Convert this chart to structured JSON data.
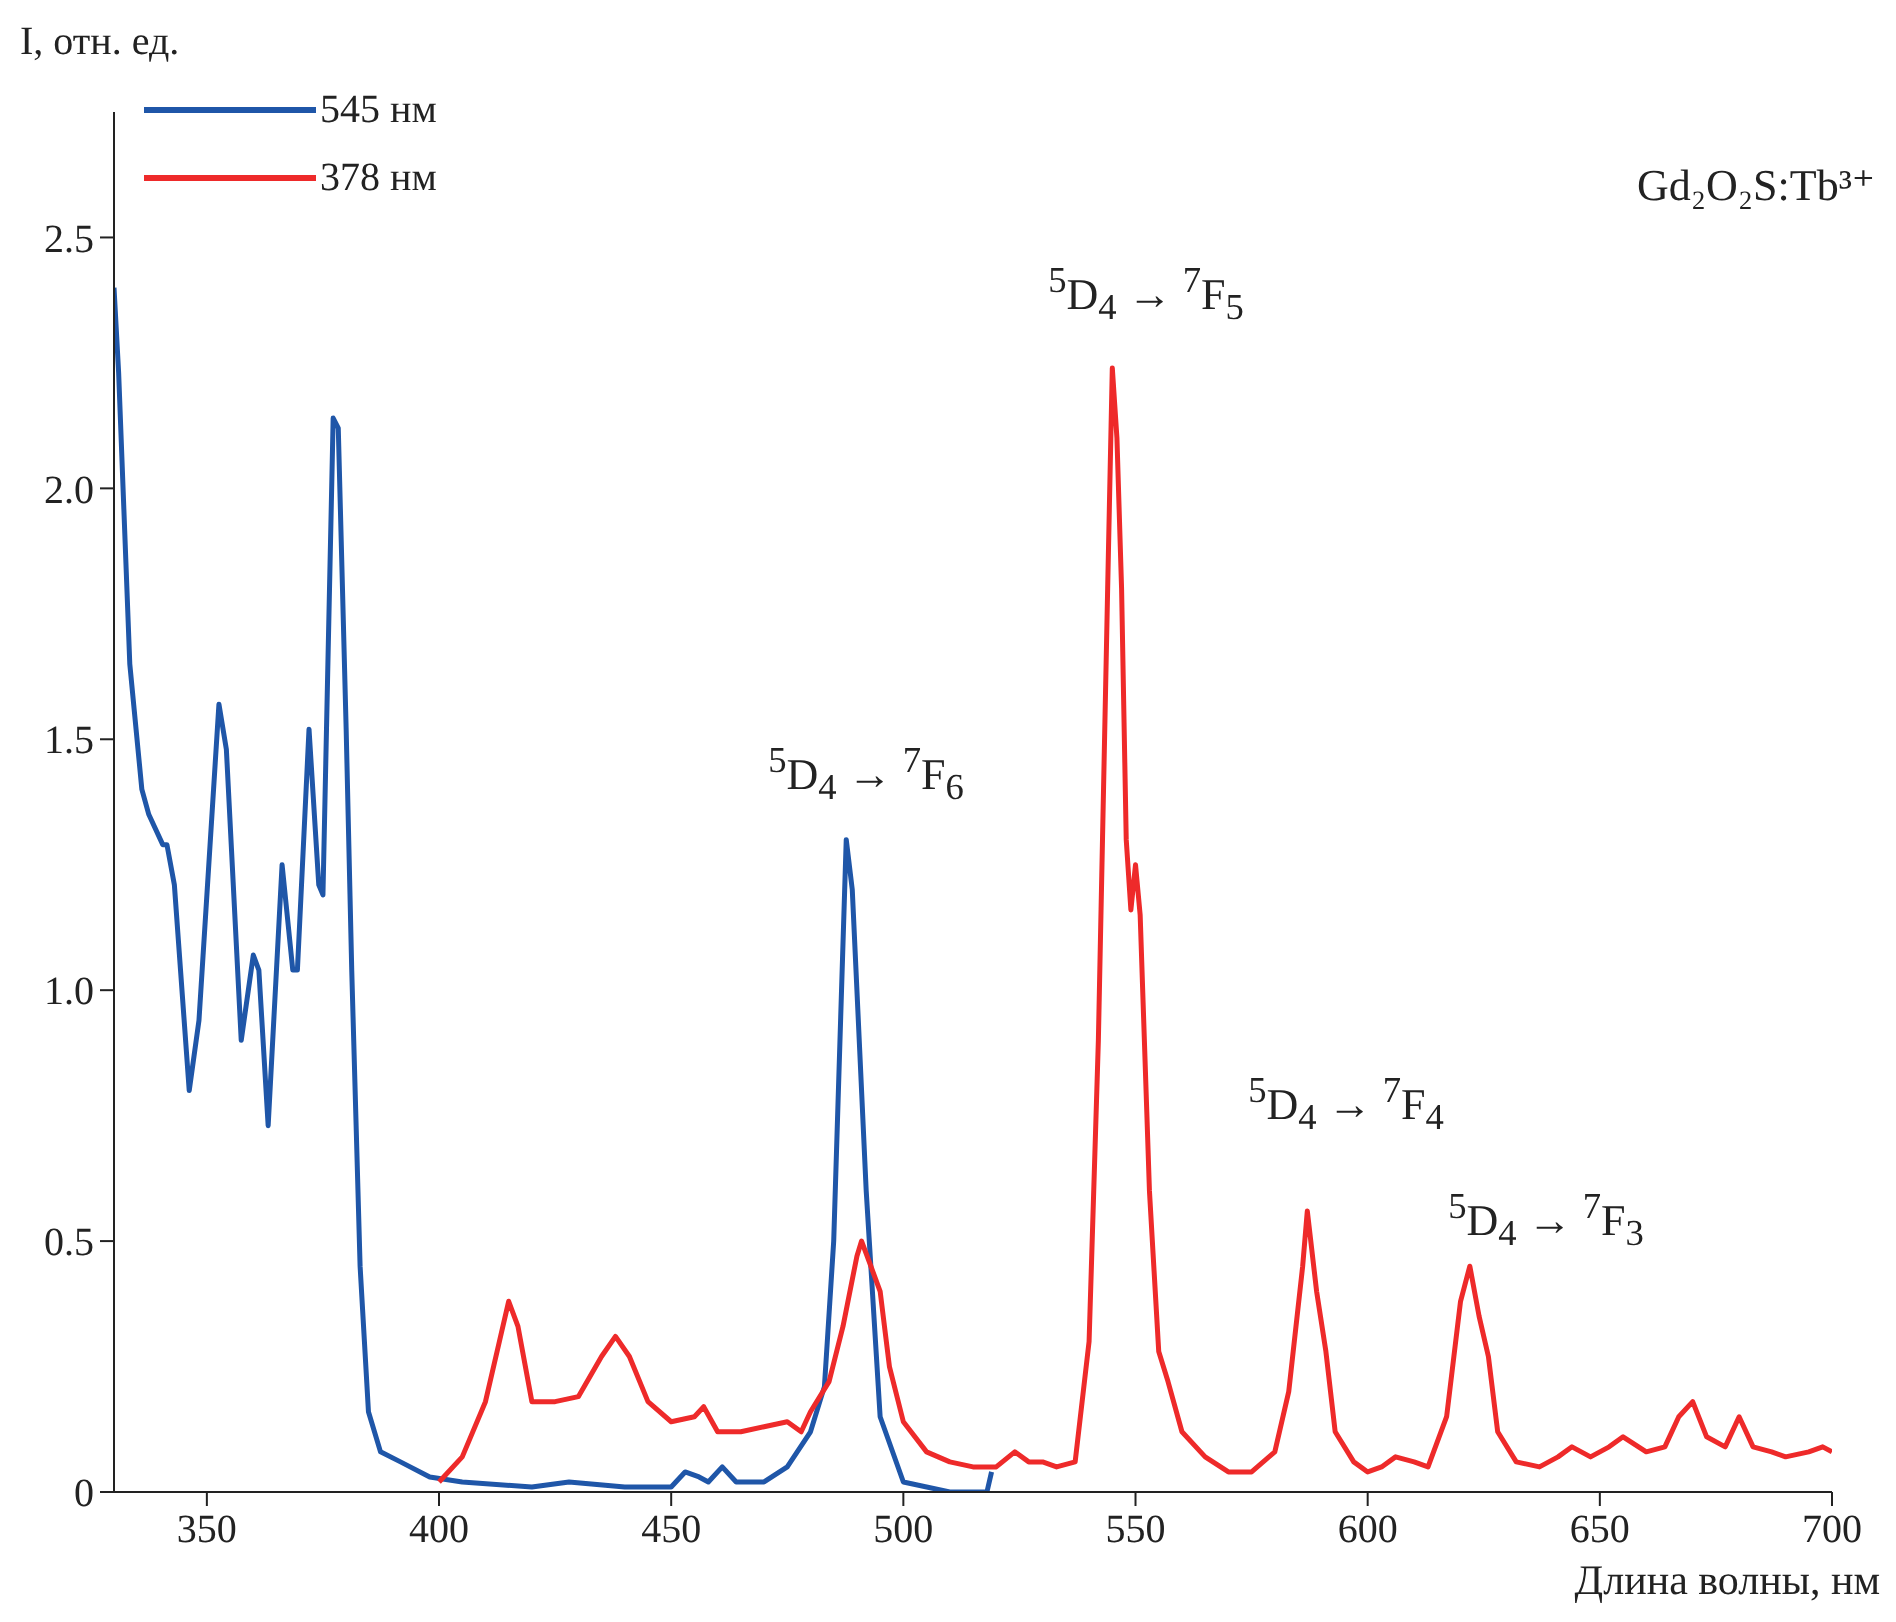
{
  "chart_data": {
    "type": "line",
    "xlabel": "Длина волны, нм",
    "ylabel": "I, отн. ед.",
    "xlim": [
      330,
      700
    ],
    "xticks": [
      350,
      400,
      450,
      500,
      550,
      600,
      650,
      700
    ],
    "ylim": [
      0,
      2.75
    ],
    "yticks": [
      0,
      0.5,
      {
        "value": 1,
        "label": "1.0"
      },
      1.5,
      {
        "value": 2,
        "label": "2.0"
      },
      2.5
    ],
    "grid": false,
    "legend": "top left",
    "marker": "none",
    "line_style": "solid",
    "series": [
      {
        "name": "545 нм",
        "color": "#1f56a8",
        "x": [
          330,
          331,
          333.4,
          336,
          337.5,
          340.5,
          341.4,
          343,
          346.2,
          348.3,
          352.6,
          354.2,
          357.4,
          360,
          361.2,
          363.2,
          366.2,
          368.5,
          369.5,
          372,
          374.1,
          375,
          377.2,
          378.3,
          380,
          381.2,
          383,
          384.8,
          387.4,
          391.7,
          398,
          405,
          420,
          428,
          440,
          450,
          453,
          456,
          458,
          461,
          464,
          470,
          475,
          480,
          483,
          485,
          487.7,
          489,
          492,
          495,
          500,
          510,
          518,
          519
        ],
        "values": [
          2.4,
          2.23,
          1.65,
          1.4,
          1.35,
          1.29,
          1.29,
          1.21,
          0.8,
          0.94,
          1.57,
          1.48,
          0.9,
          1.07,
          1.04,
          0.73,
          1.25,
          1.04,
          1.04,
          1.52,
          1.21,
          1.19,
          2.14,
          2.12,
          1.52,
          1.04,
          0.45,
          0.16,
          0.08,
          0.06,
          0.03,
          0.02,
          0.01,
          0.02,
          0.01,
          0.01,
          0.04,
          0.03,
          0.02,
          0.05,
          0.02,
          0.02,
          0.05,
          0.12,
          0.21,
          0.5,
          1.3,
          1.2,
          0.6,
          0.15,
          0.02,
          0.0,
          0.0,
          0.04
        ]
      },
      {
        "name": "378 нм",
        "color": "#ee2a2a",
        "x": [
          400,
          405,
          410,
          413,
          415,
          417,
          420,
          425,
          430,
          435,
          438,
          441,
          445,
          450,
          455,
          457,
          460,
          465,
          470,
          475,
          478,
          480,
          484,
          487,
          490,
          491,
          493,
          495,
          497,
          500,
          505,
          510,
          515,
          520,
          524,
          527,
          530,
          533,
          537,
          540,
          542,
          544,
          545,
          546,
          547,
          548,
          549,
          550,
          551,
          553,
          555,
          557,
          560,
          565,
          570,
          575,
          580,
          583,
          586,
          587,
          589,
          591,
          593,
          597,
          600,
          603,
          606,
          610,
          613,
          617,
          620,
          622,
          624,
          626,
          628,
          632,
          637,
          641,
          644,
          648,
          652,
          655,
          660,
          664,
          667,
          670,
          673,
          677,
          680,
          683,
          687,
          690,
          695,
          698,
          700
        ],
        "values": [
          0.02,
          0.07,
          0.18,
          0.3,
          0.38,
          0.33,
          0.18,
          0.18,
          0.19,
          0.27,
          0.31,
          0.27,
          0.18,
          0.14,
          0.15,
          0.17,
          0.12,
          0.12,
          0.13,
          0.14,
          0.12,
          0.16,
          0.22,
          0.33,
          0.47,
          0.5,
          0.45,
          0.4,
          0.25,
          0.14,
          0.08,
          0.06,
          0.05,
          0.05,
          0.08,
          0.06,
          0.06,
          0.05,
          0.06,
          0.3,
          0.9,
          1.8,
          2.24,
          2.1,
          1.8,
          1.3,
          1.16,
          1.25,
          1.15,
          0.6,
          0.28,
          0.22,
          0.12,
          0.07,
          0.04,
          0.04,
          0.08,
          0.2,
          0.45,
          0.56,
          0.4,
          0.28,
          0.12,
          0.06,
          0.04,
          0.05,
          0.07,
          0.06,
          0.05,
          0.15,
          0.38,
          0.45,
          0.35,
          0.27,
          0.12,
          0.06,
          0.05,
          0.07,
          0.09,
          0.07,
          0.09,
          0.11,
          0.08,
          0.09,
          0.15,
          0.18,
          0.11,
          0.09,
          0.15,
          0.09,
          0.08,
          0.07,
          0.08,
          0.09,
          0.08
        ]
      }
    ],
    "annotations": [
      "$^{5}$D$_{4}$ → $^{7}$F$_{6}$",
      "$^{5}$D$_{4}$ → $^{7}$F$_{5}$",
      "$^{5}$D$_{4}$ → $^{7}$F$_{4}$",
      "$^{5}$D$_{4}$ → $^{7}$F$_{3}$",
      "Gd₂O₂S:Tb³⁺"
    ]
  }
}
